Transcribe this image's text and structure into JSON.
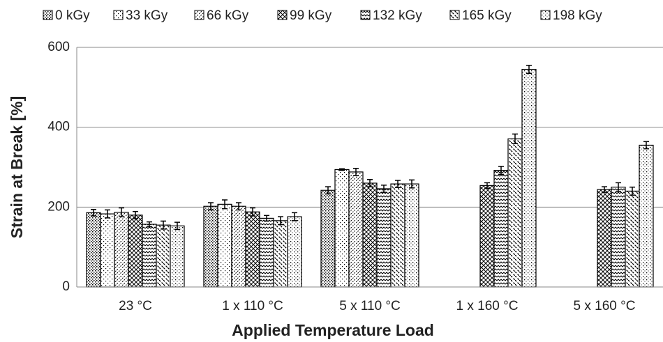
{
  "chart_data": {
    "type": "bar",
    "x_label": "Applied Temperature Load",
    "y_label": "Strain at Break [%]",
    "categories": [
      "23 °C",
      "1 x 110 °C",
      "5 x 110 °C",
      "1 x 160 °C",
      "5 x 160 °C"
    ],
    "series": [
      {
        "name": "0 kGy",
        "values": [
          186,
          202,
          242,
          null,
          null
        ],
        "errors": [
          8,
          9,
          9,
          null,
          null
        ]
      },
      {
        "name": "33 kGy",
        "values": [
          183,
          207,
          294,
          null,
          null
        ],
        "errors": [
          10,
          11,
          2,
          null,
          null
        ]
      },
      {
        "name": "66 kGy",
        "values": [
          187,
          202,
          288,
          null,
          null
        ],
        "errors": [
          11,
          9,
          9,
          null,
          null
        ]
      },
      {
        "name": "99 kGy",
        "values": [
          180,
          188,
          260,
          254,
          244
        ],
        "errors": [
          9,
          10,
          9,
          7,
          7
        ]
      },
      {
        "name": "132 kGy",
        "values": [
          157,
          172,
          246,
          292,
          250
        ],
        "errors": [
          6,
          7,
          9,
          10,
          11
        ]
      },
      {
        "name": "165 kGy",
        "values": [
          155,
          166,
          258,
          371,
          240
        ],
        "errors": [
          10,
          10,
          9,
          12,
          10
        ]
      },
      {
        "name": "198 kGy",
        "values": [
          153,
          176,
          258,
          545,
          355
        ],
        "errors": [
          9,
          10,
          10,
          10,
          9
        ]
      }
    ],
    "ylim": [
      0,
      600
    ],
    "yticks": [
      0,
      200,
      400,
      600
    ],
    "grid": true,
    "legend": "top"
  }
}
